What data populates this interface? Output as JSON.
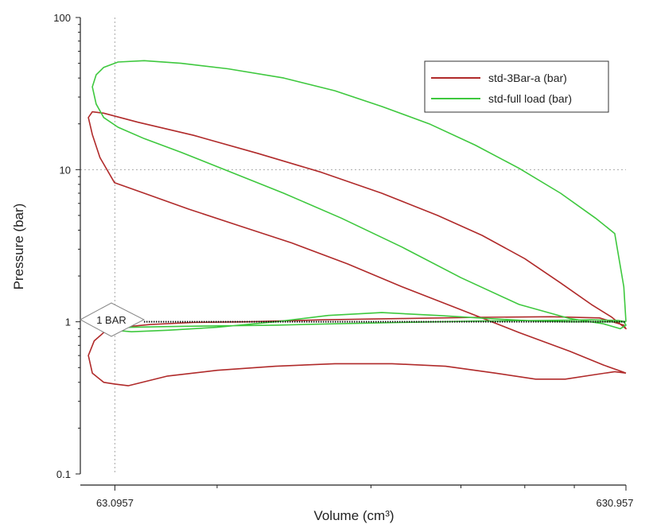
{
  "chart_data": {
    "type": "line",
    "xlabel": "Volume (cm³)",
    "ylabel": "Pressure (bar)",
    "x_scale": "log",
    "y_scale": "log",
    "xlim": [
      54,
      631
    ],
    "ylim": [
      0.1,
      100
    ],
    "x_tick_labels": [
      "63.0957",
      "630.957"
    ],
    "y_tick_labels": [
      "100",
      "10",
      "1",
      "0.1"
    ],
    "legend_position": "top-right",
    "reference_line": {
      "value": 1,
      "label": "1 BAR",
      "color": "#111111"
    },
    "crosshair": {
      "x": 63.0957,
      "y": 10
    },
    "series": [
      {
        "name": "std-3Bar-a (bar)",
        "color": "#b02a2a",
        "x": [
          630.9,
          600,
          550,
          480,
          420,
          350,
          280,
          220,
          170,
          130,
          100,
          80,
          67,
          63,
          60,
          57,
          56,
          57.5,
          60,
          65,
          74,
          90,
          115,
          160,
          230,
          330,
          450,
          560,
          625,
          630.9,
          590,
          540,
          470,
          400,
          330,
          270,
          210,
          160,
          120,
          90,
          70,
          60,
          57,
          56,
          57,
          59,
          63,
          72,
          88,
          110,
          140,
          180,
          230,
          300,
          390,
          490,
          570,
          620,
          630.9
        ],
        "y": [
          0.46,
          0.47,
          0.45,
          0.42,
          0.42,
          0.46,
          0.51,
          0.53,
          0.53,
          0.51,
          0.48,
          0.44,
          0.38,
          0.39,
          0.4,
          0.46,
          0.6,
          0.75,
          0.85,
          0.92,
          0.96,
          0.99,
          1.0,
          1.03,
          1.05,
          1.07,
          1.08,
          1.06,
          0.95,
          0.9,
          1.08,
          1.3,
          1.8,
          2.6,
          3.7,
          5.0,
          7.0,
          9.6,
          12.8,
          16.8,
          20.5,
          23.5,
          24.0,
          22.0,
          17.0,
          12.0,
          8.2,
          7.0,
          5.5,
          4.3,
          3.3,
          2.4,
          1.7,
          1.2,
          0.85,
          0.64,
          0.52,
          0.47,
          0.46
        ]
      },
      {
        "name": "std-full load (bar)",
        "color": "#3ec83e",
        "x": [
          630.9,
          625,
          600,
          550,
          470,
          390,
          320,
          260,
          210,
          170,
          135,
          105,
          85,
          72,
          64,
          60,
          58,
          57,
          58,
          60,
          64,
          72,
          85,
          105,
          135,
          175,
          230,
          300,
          390,
          490,
          570,
          615,
          630.9,
          625,
          600,
          560,
          500,
          420,
          340,
          270,
          210,
          165,
          130,
          100,
          80,
          68,
          63,
          62,
          63,
          68,
          80,
          100,
          130,
          170,
          230,
          320,
          430,
          540,
          610,
          630.9
        ],
        "y": [
          1.0,
          1.7,
          3.8,
          4.8,
          7.0,
          10.2,
          14.5,
          20.0,
          26.0,
          33.0,
          40.0,
          46.0,
          50.0,
          52.0,
          51.0,
          47.0,
          42.0,
          35.0,
          27.0,
          22.0,
          19.0,
          16.0,
          13.0,
          9.8,
          7.0,
          4.8,
          3.1,
          1.95,
          1.3,
          1.05,
          0.97,
          0.9,
          0.95,
          1.0,
          1.0,
          1.0,
          1.0,
          1.01,
          1.05,
          1.1,
          1.15,
          1.1,
          1.0,
          0.92,
          0.88,
          0.86,
          0.88,
          0.9,
          0.91,
          0.92,
          0.93,
          0.94,
          0.95,
          0.97,
          0.99,
          1.01,
          1.02,
          1.03,
          1.02,
          1.0
        ]
      }
    ]
  }
}
